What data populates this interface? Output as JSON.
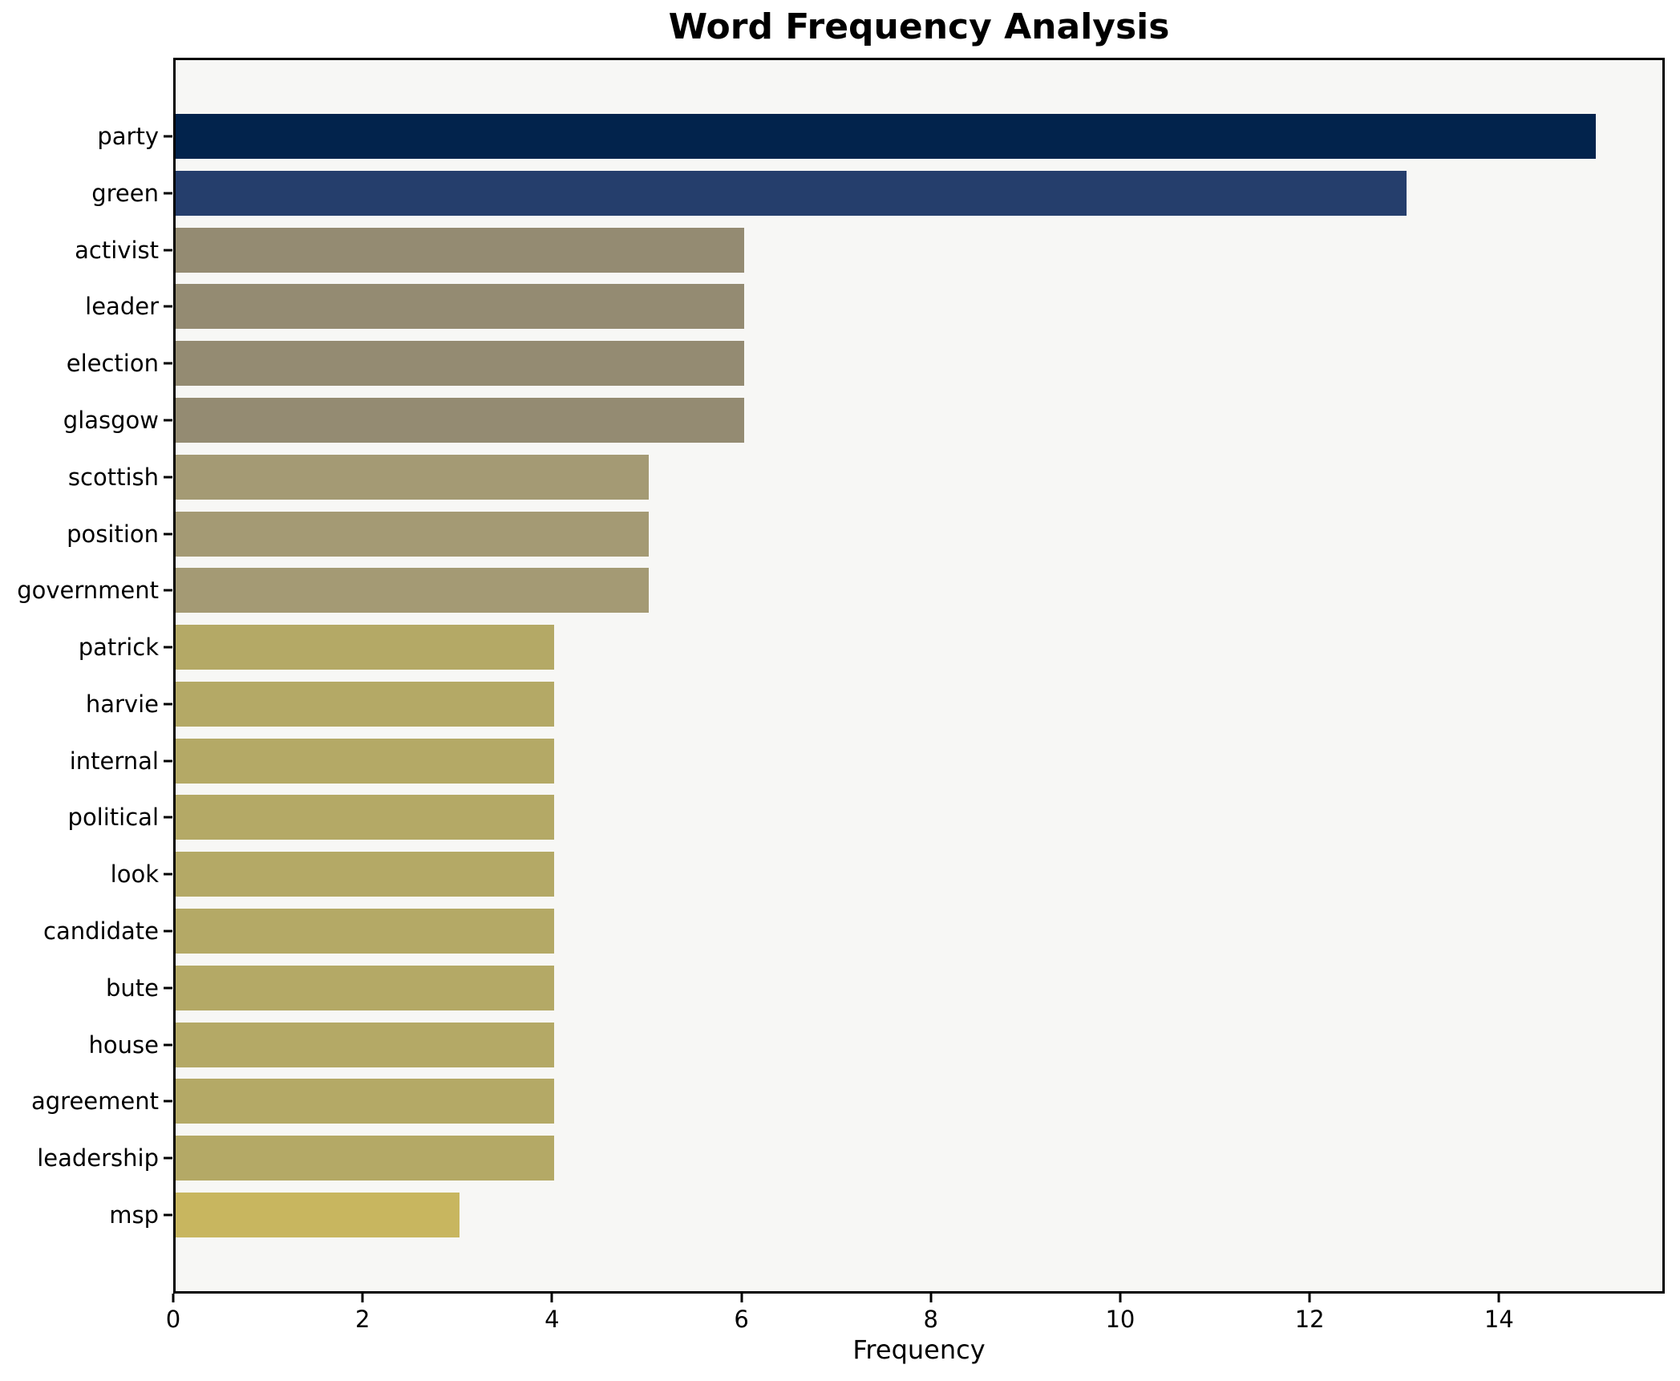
{
  "chart_data": {
    "type": "bar",
    "orientation": "horizontal",
    "title": "Word Frequency Analysis",
    "xlabel": "Frequency",
    "ylabel": "",
    "categories": [
      "party",
      "green",
      "activist",
      "leader",
      "election",
      "glasgow",
      "scottish",
      "position",
      "government",
      "patrick",
      "harvie",
      "internal",
      "political",
      "look",
      "candidate",
      "bute",
      "house",
      "agreement",
      "leadership",
      "msp"
    ],
    "values": [
      15,
      13,
      6,
      6,
      6,
      6,
      5,
      5,
      5,
      4,
      4,
      4,
      4,
      4,
      4,
      4,
      4,
      4,
      4,
      3
    ],
    "bar_colors": [
      "#02234c",
      "#253e6c",
      "#948b72",
      "#948b72",
      "#948b72",
      "#948b72",
      "#a49a74",
      "#a49a74",
      "#a49a74",
      "#b4a966",
      "#b4a966",
      "#b4a966",
      "#b4a966",
      "#b4a966",
      "#b4a966",
      "#b4a966",
      "#b4a966",
      "#b4a966",
      "#b4a966",
      "#c8b65f"
    ],
    "xlim": [
      0,
      15.75
    ],
    "xticks": [
      0,
      2,
      4,
      6,
      8,
      10,
      12,
      14
    ],
    "grid": false,
    "legend": "none",
    "plot_background": "#f7f7f5",
    "figure_background": "#ffffff",
    "frame_color": "#000000"
  }
}
